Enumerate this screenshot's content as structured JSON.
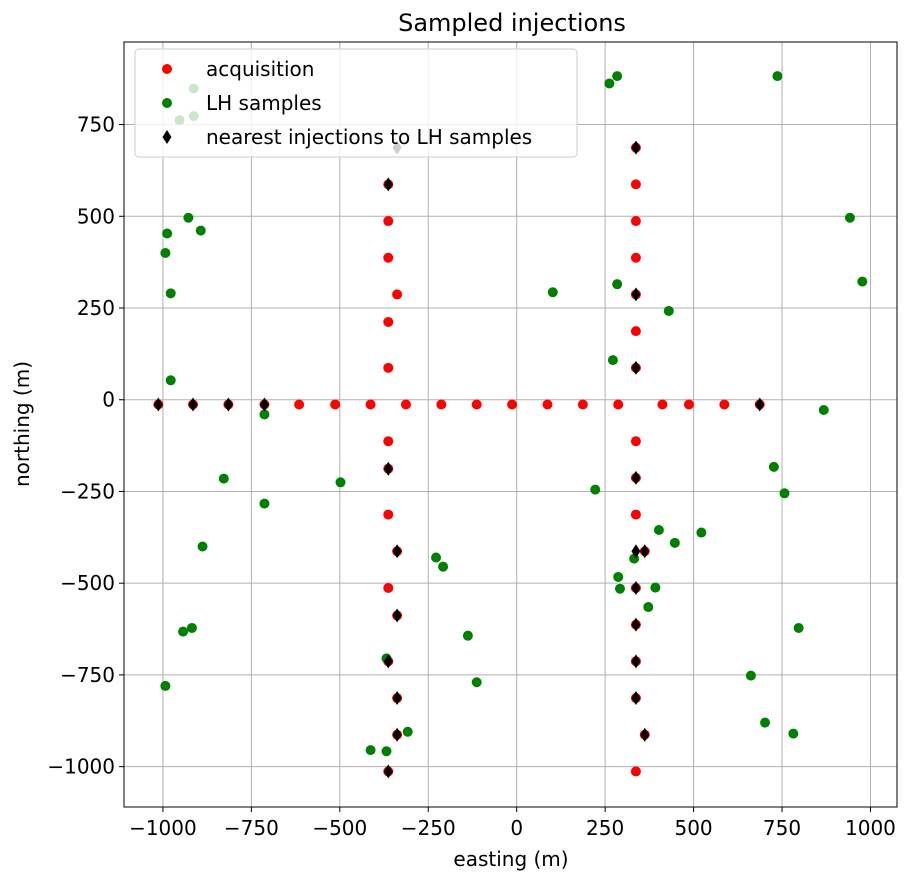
{
  "chart_data": {
    "type": "scatter",
    "title": "Sampled injections",
    "xlabel": "easting (m)",
    "ylabel": "northing (m)",
    "xlim": [
      -1110,
      1075
    ],
    "ylim": [
      -1110,
      975
    ],
    "xticks": [
      -1000,
      -750,
      -500,
      -250,
      0,
      250,
      500,
      750,
      1000
    ],
    "xtick_labels": [
      "−1000",
      "−750",
      "−500",
      "−250",
      "0",
      "250",
      "500",
      "750",
      "1000"
    ],
    "yticks": [
      -1000,
      -750,
      -500,
      -250,
      0,
      250,
      500,
      750
    ],
    "ytick_labels": [
      "−1000",
      "−750",
      "−500",
      "−250",
      "0",
      "250",
      "500",
      "750"
    ],
    "grid": true,
    "legend_position": "top-left",
    "series": [
      {
        "name": "acquisition",
        "marker": "circle",
        "color": "#ff0000",
        "points": [
          [
            -1013,
            -13
          ],
          [
            -915,
            -13
          ],
          [
            -815,
            -13
          ],
          [
            -713,
            -13
          ],
          [
            -615,
            -13
          ],
          [
            -513,
            -13
          ],
          [
            -413,
            -13
          ],
          [
            -313,
            -13
          ],
          [
            -213,
            -13
          ],
          [
            -113,
            -13
          ],
          [
            -13,
            -13
          ],
          [
            87,
            -13
          ],
          [
            187,
            -13
          ],
          [
            287,
            -13
          ],
          [
            412,
            -13
          ],
          [
            487,
            -13
          ],
          [
            587,
            -13
          ],
          [
            687,
            -13
          ],
          [
            -363,
            587
          ],
          [
            -363,
            487
          ],
          [
            -363,
            387
          ],
          [
            -338,
            287
          ],
          [
            -363,
            212
          ],
          [
            -363,
            87
          ],
          [
            -363,
            -113
          ],
          [
            -363,
            -188
          ],
          [
            -363,
            -313
          ],
          [
            -338,
            -413
          ],
          [
            -363,
            -513
          ],
          [
            -338,
            -588
          ],
          [
            -363,
            -713
          ],
          [
            -338,
            -813
          ],
          [
            -338,
            -913
          ],
          [
            -363,
            -1013
          ],
          [
            337,
            687
          ],
          [
            337,
            587
          ],
          [
            337,
            487
          ],
          [
            337,
            387
          ],
          [
            337,
            287
          ],
          [
            337,
            187
          ],
          [
            337,
            87
          ],
          [
            337,
            -113
          ],
          [
            337,
            -213
          ],
          [
            337,
            -313
          ],
          [
            362,
            -413
          ],
          [
            337,
            -513
          ],
          [
            337,
            -613
          ],
          [
            337,
            -713
          ],
          [
            337,
            -813
          ],
          [
            362,
            -913
          ],
          [
            337,
            -1013
          ]
        ]
      },
      {
        "name": "LH samples",
        "marker": "circle",
        "color": "#008000",
        "points": [
          [
            -913,
            848
          ],
          [
            -953,
            762
          ],
          [
            -913,
            773
          ],
          [
            -988,
            453
          ],
          [
            -928,
            496
          ],
          [
            -893,
            461
          ],
          [
            -993,
            400
          ],
          [
            -978,
            290
          ],
          [
            -978,
            53
          ],
          [
            -713,
            -40
          ],
          [
            -828,
            -215
          ],
          [
            -713,
            -283
          ],
          [
            -888,
            -400
          ],
          [
            -943,
            -632
          ],
          [
            -918,
            -622
          ],
          [
            -993,
            -780
          ],
          [
            -498,
            -225
          ],
          [
            -228,
            -430
          ],
          [
            -208,
            -455
          ],
          [
            -138,
            -643
          ],
          [
            -113,
            -770
          ],
          [
            -413,
            -955
          ],
          [
            -368,
            -958
          ],
          [
            -308,
            -905
          ],
          [
            -368,
            -705
          ],
          [
            262,
            862
          ],
          [
            284,
            882
          ],
          [
            737,
            882
          ],
          [
            942,
            496
          ],
          [
            977,
            322
          ],
          [
            284,
            315
          ],
          [
            102,
            293
          ],
          [
            430,
            242
          ],
          [
            272,
            108
          ],
          [
            868,
            -28
          ],
          [
            727,
            -183
          ],
          [
            757,
            -255
          ],
          [
            222,
            -245
          ],
          [
            402,
            -355
          ],
          [
            447,
            -390
          ],
          [
            522,
            -362
          ],
          [
            332,
            -433
          ],
          [
            287,
            -483
          ],
          [
            292,
            -515
          ],
          [
            392,
            -512
          ],
          [
            372,
            -565
          ],
          [
            662,
            -752
          ],
          [
            797,
            -622
          ],
          [
            702,
            -880
          ],
          [
            782,
            -910
          ]
        ]
      },
      {
        "name": "nearest injections to LH samples",
        "marker": "diamond",
        "color": "#000000",
        "points": [
          [
            -1013,
            -13
          ],
          [
            -915,
            -13
          ],
          [
            -815,
            -13
          ],
          [
            -713,
            -13
          ],
          [
            687,
            -13
          ],
          [
            -363,
            587
          ],
          [
            -338,
            687
          ],
          [
            -363,
            -188
          ],
          [
            -338,
            -413
          ],
          [
            -338,
            -588
          ],
          [
            -363,
            -713
          ],
          [
            -338,
            -813
          ],
          [
            -338,
            -913
          ],
          [
            -363,
            -1013
          ],
          [
            337,
            687
          ],
          [
            337,
            287
          ],
          [
            337,
            87
          ],
          [
            337,
            -213
          ],
          [
            337,
            -413
          ],
          [
            362,
            -413
          ],
          [
            337,
            -513
          ],
          [
            337,
            -613
          ],
          [
            337,
            -713
          ],
          [
            337,
            -813
          ],
          [
            362,
            -913
          ]
        ]
      }
    ]
  }
}
